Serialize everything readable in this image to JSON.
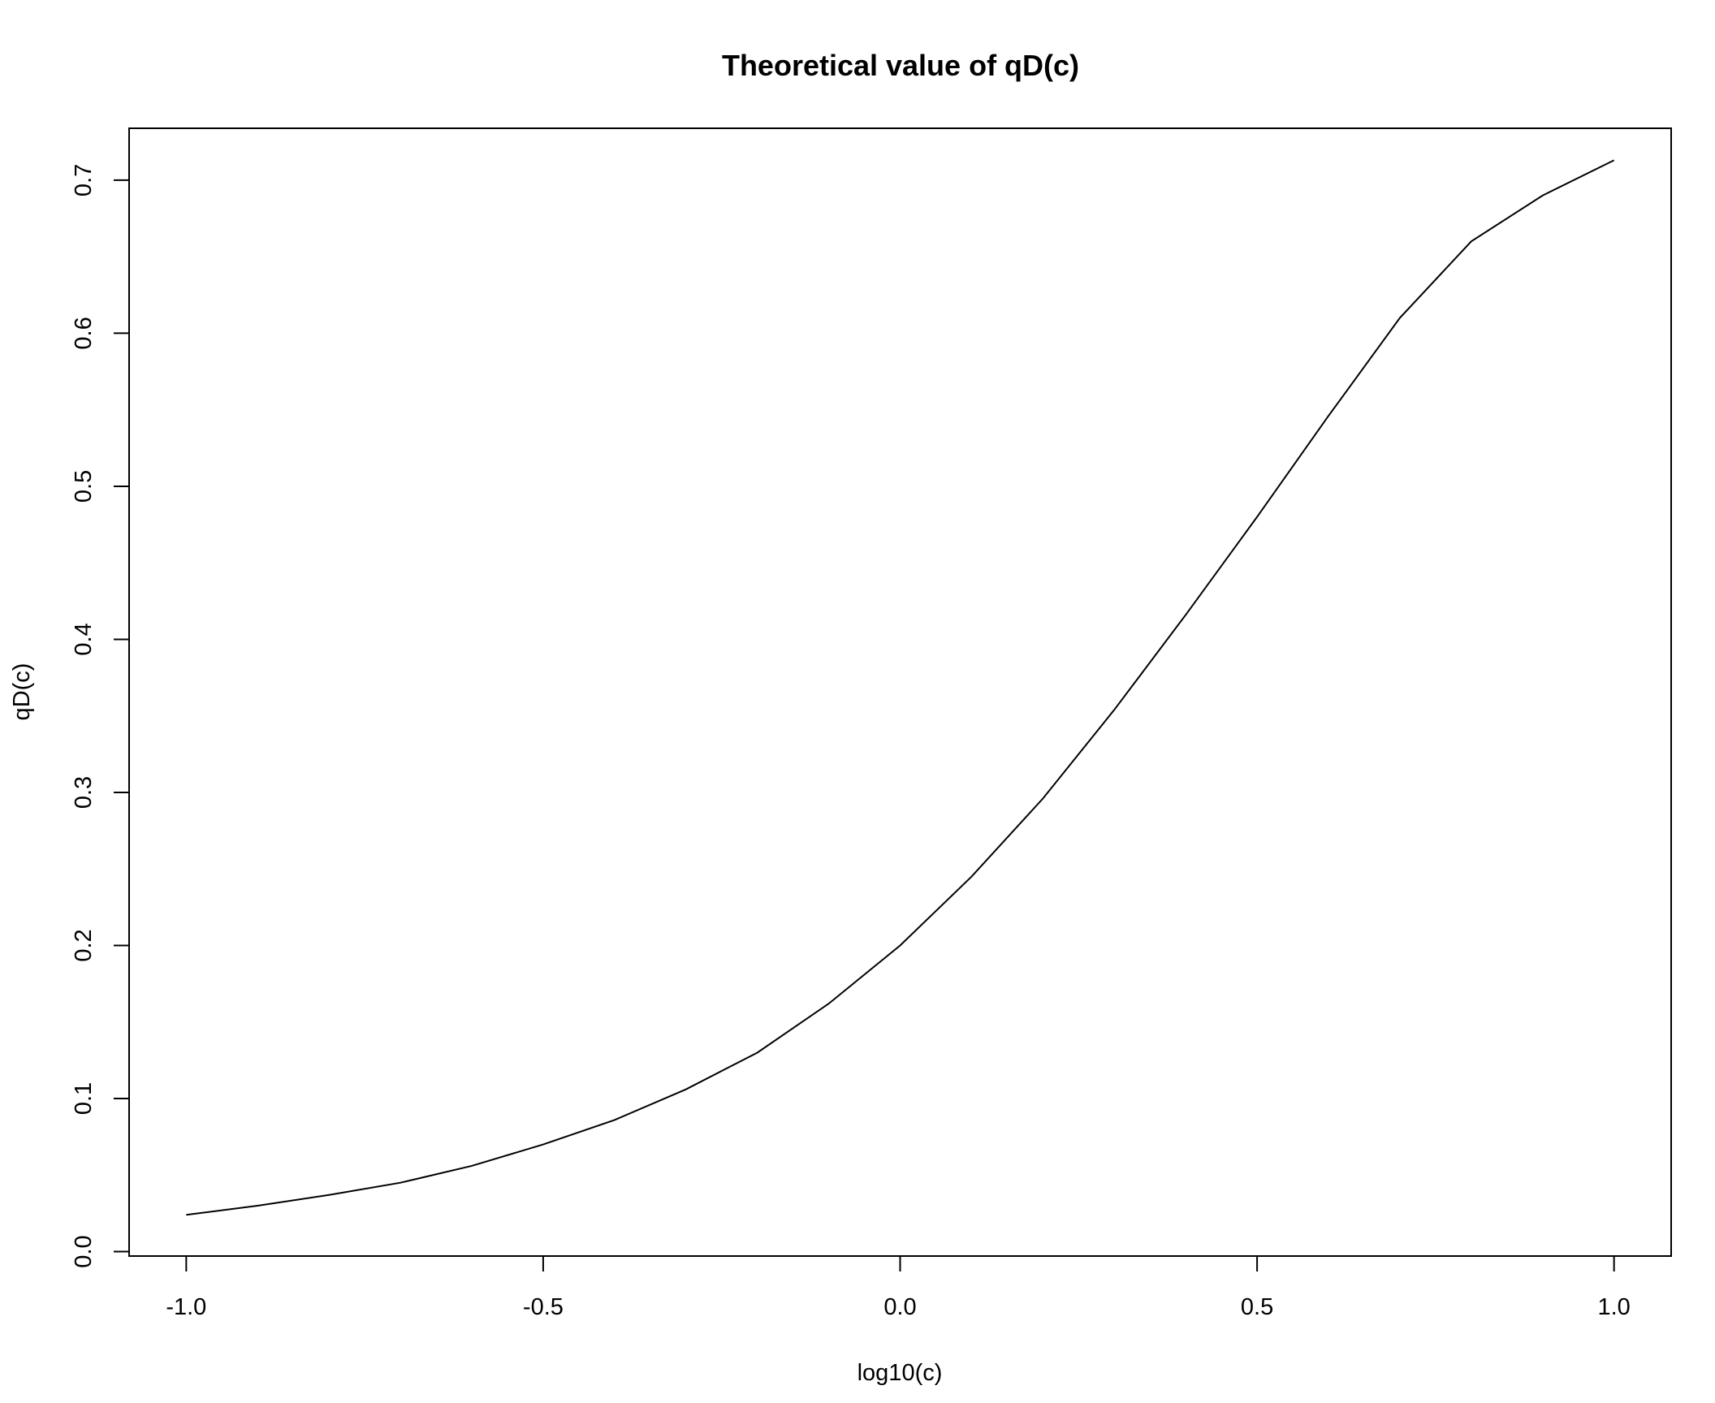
{
  "chart_data": {
    "type": "line",
    "title": "Theoretical value of qD(c)",
    "xlabel": "log10(c)",
    "ylabel": "qD(c)",
    "xlim": [
      -1.08,
      1.08
    ],
    "ylim": [
      -0.0029,
      0.7339
    ],
    "xticks": [
      -1.0,
      -0.5,
      0.0,
      0.5,
      1.0
    ],
    "xtick_labels": [
      "-1.0",
      "-0.5",
      "0.0",
      "0.5",
      "1.0"
    ],
    "yticks": [
      0.0,
      0.1,
      0.2,
      0.3,
      0.4,
      0.5,
      0.6,
      0.7
    ],
    "ytick_labels": [
      "0.0",
      "0.1",
      "0.2",
      "0.3",
      "0.4",
      "0.5",
      "0.6",
      "0.7"
    ],
    "grid": false,
    "series": [
      {
        "name": "qD(c)",
        "color": "#000000",
        "x": [
          -1.0,
          -0.9,
          -0.8,
          -0.7,
          -0.6,
          -0.5,
          -0.4,
          -0.3,
          -0.2,
          -0.1,
          0.0,
          0.1,
          0.2,
          0.3,
          0.4,
          0.5,
          0.6,
          0.7,
          0.8,
          0.9,
          1.0
        ],
        "y": [
          0.024,
          0.03,
          0.037,
          0.045,
          0.056,
          0.07,
          0.086,
          0.106,
          0.13,
          0.162,
          0.2,
          0.245,
          0.296,
          0.354,
          0.416,
          0.48,
          0.546,
          0.61,
          0.66,
          0.69,
          0.713
        ]
      }
    ]
  }
}
